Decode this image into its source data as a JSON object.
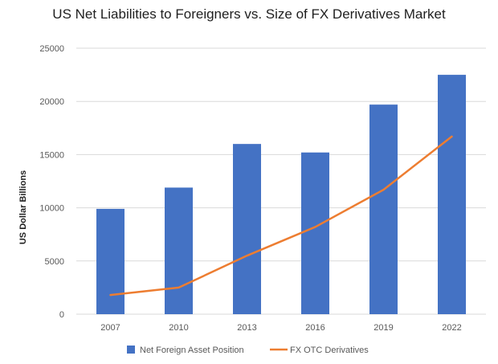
{
  "chart_data": {
    "type": "bar",
    "title": "US Net Liabilities to Foreigners vs. Size of FX Derivatives Market",
    "xlabel": "",
    "ylabel": "US Dollar Billions",
    "ylim": [
      0,
      25000
    ],
    "yticks": [
      0,
      5000,
      10000,
      15000,
      20000,
      25000
    ],
    "grid": true,
    "legend_position": "bottom",
    "categories": [
      "2007",
      "2010",
      "2013",
      "2016",
      "2019",
      "2022"
    ],
    "series": [
      {
        "name": "Net Foreign Asset Position",
        "type": "bar",
        "color": "#4472C4",
        "values": [
          9900,
          11900,
          16000,
          15200,
          19700,
          22500
        ]
      },
      {
        "name": "FX OTC Derivatives",
        "type": "line",
        "color": "#ED7D31",
        "values": [
          1800,
          2500,
          5500,
          8200,
          11700,
          16700
        ]
      }
    ]
  }
}
